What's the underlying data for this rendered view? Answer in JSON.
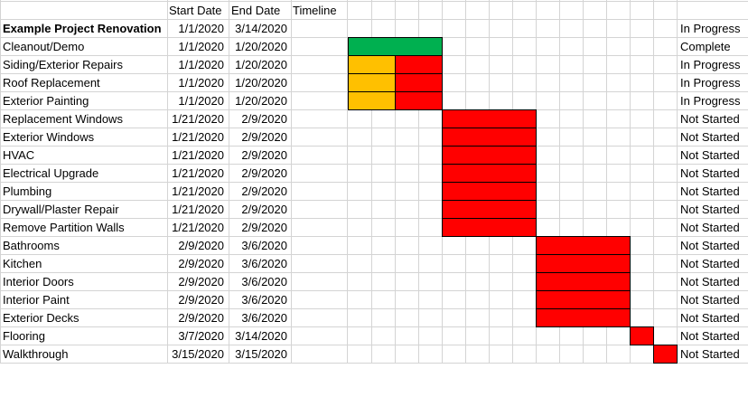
{
  "header": {
    "project_title": "Example Project Renovation",
    "start_label": "Start Date",
    "end_label": "End Date",
    "timeline_label": "Timeline"
  },
  "project_dates": {
    "start": "1/1/2020",
    "end": "3/14/2020"
  },
  "project_status": "In Progress",
  "colors": {
    "complete": "#00b050",
    "in_progress": "#ffc000",
    "not_started": "#ff0000",
    "grid": "#d4d4d4"
  },
  "tasks": [
    {
      "name": "Cleanout/Demo",
      "start": "1/1/2020",
      "end": "1/20/2020",
      "status": "Complete",
      "bar": {
        "col": 0,
        "span": 4,
        "segments": [
          {
            "color": "complete",
            "cols": 4
          }
        ]
      }
    },
    {
      "name": "Siding/Exterior Repairs",
      "start": "1/1/2020",
      "end": "1/20/2020",
      "status": "In Progress",
      "bar": {
        "col": 0,
        "span": 4,
        "segments": [
          {
            "color": "in_progress",
            "cols": 2
          },
          {
            "color": "not_started",
            "cols": 2
          }
        ]
      }
    },
    {
      "name": "Roof Replacement",
      "start": "1/1/2020",
      "end": "1/20/2020",
      "status": "In Progress",
      "bar": {
        "col": 0,
        "span": 4,
        "segments": [
          {
            "color": "in_progress",
            "cols": 2
          },
          {
            "color": "not_started",
            "cols": 2
          }
        ]
      }
    },
    {
      "name": "Exterior Painting",
      "start": "1/1/2020",
      "end": "1/20/2020",
      "status": "In Progress",
      "bar": {
        "col": 0,
        "span": 4,
        "segments": [
          {
            "color": "in_progress",
            "cols": 2
          },
          {
            "color": "not_started",
            "cols": 2
          }
        ]
      }
    },
    {
      "name": "Replacement Windows",
      "start": "1/21/2020",
      "end": "2/9/2020",
      "status": "Not Started",
      "bar": {
        "col": 4,
        "span": 4,
        "segments": [
          {
            "color": "not_started",
            "cols": 4
          }
        ]
      }
    },
    {
      "name": "Exterior Windows",
      "start": "1/21/2020",
      "end": "2/9/2020",
      "status": "Not Started",
      "bar": {
        "col": 4,
        "span": 4,
        "segments": [
          {
            "color": "not_started",
            "cols": 4
          }
        ]
      }
    },
    {
      "name": "HVAC",
      "start": "1/21/2020",
      "end": "2/9/2020",
      "status": "Not Started",
      "bar": {
        "col": 4,
        "span": 4,
        "segments": [
          {
            "color": "not_started",
            "cols": 4
          }
        ]
      }
    },
    {
      "name": "Electrical Upgrade",
      "start": "1/21/2020",
      "end": "2/9/2020",
      "status": "Not Started",
      "bar": {
        "col": 4,
        "span": 4,
        "segments": [
          {
            "color": "not_started",
            "cols": 4
          }
        ]
      }
    },
    {
      "name": "Plumbing",
      "start": "1/21/2020",
      "end": "2/9/2020",
      "status": "Not Started",
      "bar": {
        "col": 4,
        "span": 4,
        "segments": [
          {
            "color": "not_started",
            "cols": 4
          }
        ]
      }
    },
    {
      "name": "Drywall/Plaster Repair",
      "start": "1/21/2020",
      "end": "2/9/2020",
      "status": "Not Started",
      "bar": {
        "col": 4,
        "span": 4,
        "segments": [
          {
            "color": "not_started",
            "cols": 4
          }
        ]
      }
    },
    {
      "name": "Remove Partition Walls",
      "start": "1/21/2020",
      "end": "2/9/2020",
      "status": "Not Started",
      "bar": {
        "col": 4,
        "span": 4,
        "segments": [
          {
            "color": "not_started",
            "cols": 4
          }
        ]
      }
    },
    {
      "name": "Bathrooms",
      "start": "2/9/2020",
      "end": "3/6/2020",
      "status": "Not Started",
      "bar": {
        "col": 8,
        "span": 4,
        "segments": [
          {
            "color": "not_started",
            "cols": 4
          }
        ]
      }
    },
    {
      "name": "Kitchen",
      "start": "2/9/2020",
      "end": "3/6/2020",
      "status": "Not Started",
      "bar": {
        "col": 8,
        "span": 4,
        "segments": [
          {
            "color": "not_started",
            "cols": 4
          }
        ]
      }
    },
    {
      "name": "Interior Doors",
      "start": "2/9/2020",
      "end": "3/6/2020",
      "status": "Not Started",
      "bar": {
        "col": 8,
        "span": 4,
        "segments": [
          {
            "color": "not_started",
            "cols": 4
          }
        ]
      }
    },
    {
      "name": "Interior Paint",
      "start": "2/9/2020",
      "end": "3/6/2020",
      "status": "Not Started",
      "bar": {
        "col": 8,
        "span": 4,
        "segments": [
          {
            "color": "not_started",
            "cols": 4
          }
        ]
      }
    },
    {
      "name": "Exterior Decks",
      "start": "2/9/2020",
      "end": "3/6/2020",
      "status": "Not Started",
      "bar": {
        "col": 8,
        "span": 4,
        "segments": [
          {
            "color": "not_started",
            "cols": 4
          }
        ]
      }
    },
    {
      "name": "Flooring",
      "start": "3/7/2020",
      "end": "3/14/2020",
      "status": "Not Started",
      "bar": {
        "col": 12,
        "span": 1,
        "segments": [
          {
            "color": "not_started",
            "cols": 1
          }
        ]
      }
    },
    {
      "name": "Walkthrough",
      "start": "3/15/2020",
      "end": "3/15/2020",
      "status": "Not Started",
      "bar": {
        "col": 13,
        "span": 1,
        "segments": [
          {
            "color": "not_started",
            "cols": 1
          }
        ]
      }
    }
  ]
}
